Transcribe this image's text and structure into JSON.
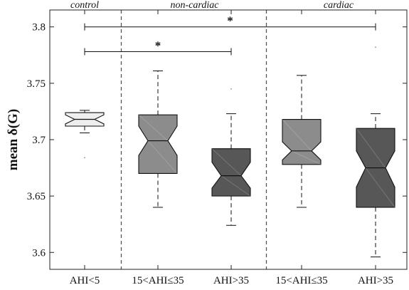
{
  "chart_data": {
    "type": "boxplot",
    "ylabel": "mean δ(G)",
    "ylim": [
      3.585,
      3.815
    ],
    "yticks": [
      3.6,
      3.65,
      3.7,
      3.75,
      3.8
    ],
    "ytick_labels": [
      "3.6",
      "3.65",
      "3.7",
      "3.75",
      "3.8"
    ],
    "groups": [
      {
        "label": "control",
        "categories": [
          0
        ]
      },
      {
        "label": "non-cardiac",
        "categories": [
          1,
          2
        ]
      },
      {
        "label": "cardiac",
        "categories": [
          3,
          4
        ]
      }
    ],
    "categories": [
      "AHI<5",
      "15<AHI≤35",
      "AHI>35",
      "15<AHI≤35",
      "AHI>35"
    ],
    "boxes": [
      {
        "q1": 3.712,
        "median": 3.718,
        "q3": 3.724,
        "notch_low": 3.714,
        "notch_high": 3.722,
        "whisker_low": 3.706,
        "whisker_high": 3.726,
        "outliers": [
          3.684
        ],
        "color": "#eeeeee"
      },
      {
        "q1": 3.67,
        "median": 3.699,
        "q3": 3.722,
        "notch_low": 3.686,
        "notch_high": 3.712,
        "whisker_low": 3.64,
        "whisker_high": 3.761,
        "outliers": [],
        "color": "#8c8c8c"
      },
      {
        "q1": 3.65,
        "median": 3.668,
        "q3": 3.692,
        "notch_low": 3.657,
        "notch_high": 3.68,
        "whisker_low": 3.624,
        "whisker_high": 3.723,
        "outliers": [
          3.745
        ],
        "color": "#575757"
      },
      {
        "q1": 3.678,
        "median": 3.69,
        "q3": 3.718,
        "notch_low": 3.682,
        "notch_high": 3.698,
        "whisker_low": 3.64,
        "whisker_high": 3.757,
        "outliers": [],
        "color": "#8c8c8c"
      },
      {
        "q1": 3.64,
        "median": 3.675,
        "q3": 3.71,
        "notch_low": 3.658,
        "notch_high": 3.69,
        "whisker_low": 3.596,
        "whisker_high": 3.723,
        "outliers": [
          3.782
        ],
        "color": "#575757"
      }
    ],
    "significance": [
      {
        "from": 0,
        "to": 4,
        "y": 3.8,
        "label": "*"
      },
      {
        "from": 0,
        "to": 2,
        "y": 3.778,
        "label": "*"
      }
    ],
    "separators_after_categories": [
      0,
      2
    ]
  }
}
